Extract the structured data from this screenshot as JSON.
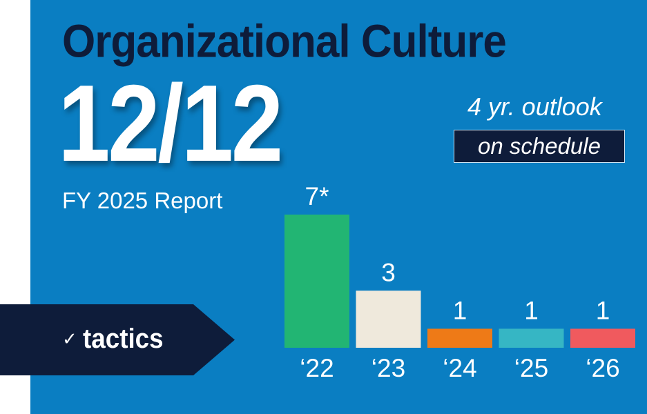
{
  "header": {
    "title": "Organizational Culture",
    "big_number": "12/12",
    "report_label": "FY 2025 Report",
    "outlook_label": "4 yr. outlook",
    "status_label": "on schedule"
  },
  "tactics": {
    "label": "tactics",
    "check_glyph": "✓"
  },
  "colors": {
    "background": "#0a7ec2",
    "navy": "#0e1c3a"
  },
  "chart_data": {
    "type": "bar",
    "categories": [
      "‘22",
      "‘23",
      "‘24",
      "‘25",
      "‘26"
    ],
    "values": [
      7,
      3,
      1,
      1,
      1
    ],
    "value_labels": [
      "7*",
      "3",
      "1",
      "1",
      "1"
    ],
    "colors": [
      "#22b573",
      "#efe9dc",
      "#ee7a17",
      "#36b6c4",
      "#f05a5e"
    ],
    "title": "",
    "xlabel": "",
    "ylabel": "",
    "ylim": [
      0,
      7
    ],
    "grid": false,
    "legend": "none"
  }
}
